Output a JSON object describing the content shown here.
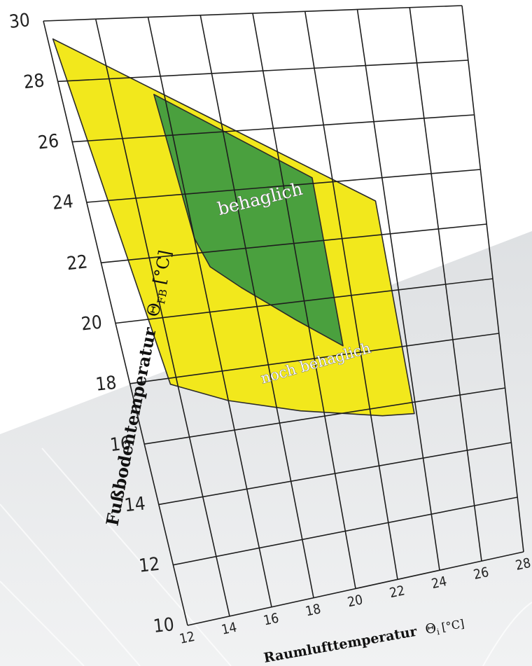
{
  "chart_data": {
    "type": "area",
    "xlabel": "Raumlufttemperatur Θi [°C]",
    "xlabel_main": "Raumlufttemperatur",
    "xlabel_symbol": "Θ",
    "xlabel_sub": "i",
    "xlabel_unit": "[°C]",
    "ylabel": "Fußbodentemperatur ΘFB [°C]",
    "ylabel_main": "Fußbodentemperatur",
    "ylabel_symbol": "Θ",
    "ylabel_sub": "FB",
    "ylabel_unit": "[°C]",
    "xlim": [
      12,
      28
    ],
    "ylim": [
      10,
      30
    ],
    "x_ticks": [
      "12",
      "14",
      "16",
      "18",
      "20",
      "22",
      "24",
      "26",
      "28"
    ],
    "y_ticks": [
      "10",
      "12",
      "14",
      "16",
      "18",
      "20",
      "22",
      "24",
      "26",
      "28",
      "30"
    ],
    "grid": true,
    "series": [
      {
        "name": "noch behaglich",
        "color": "#f2e81c",
        "points": [
          [
            12.2,
            29.4
          ],
          [
            23.6,
            23.2
          ],
          [
            23.9,
            15.6
          ],
          [
            22.5,
            15.7
          ],
          [
            19.0,
            16.3
          ],
          [
            16.0,
            17.0
          ],
          [
            13.7,
            17.8
          ]
        ]
      },
      {
        "name": "behaglich",
        "color": "#4aa03e",
        "points": [
          [
            15.6,
            27.4
          ],
          [
            21.2,
            24.2
          ],
          [
            21.3,
            18.3
          ],
          [
            19.5,
            19.4
          ],
          [
            17.5,
            20.7
          ],
          [
            16.4,
            21.5
          ],
          [
            16.0,
            22.5
          ]
        ]
      }
    ],
    "annotations": [
      "behaglich",
      "noch behaglich"
    ]
  }
}
